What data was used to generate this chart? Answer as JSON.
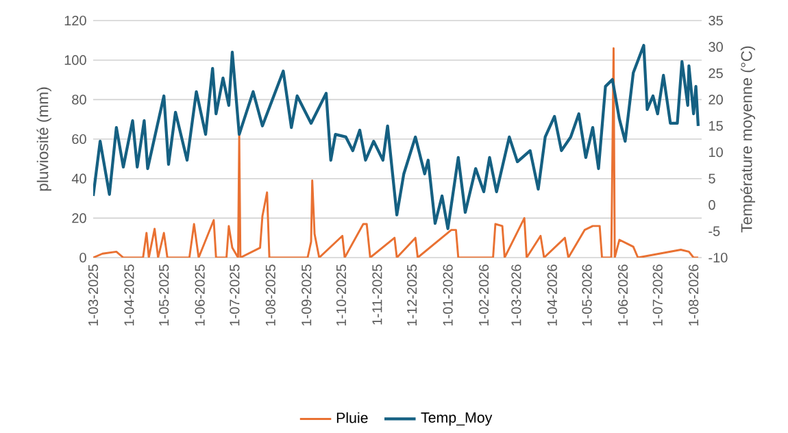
{
  "chart_data": {
    "type": "line",
    "xlabel": null,
    "ylabel": "pluviosité (mm)",
    "y2label": "Température moyenne (°C)",
    "xlim": [
      "2025-03-01",
      "2026-08-08"
    ],
    "xticks": [
      {
        "value": "2025-03-01",
        "label": "1-03-2025"
      },
      {
        "value": "2025-04-01",
        "label": "1-04-2025"
      },
      {
        "value": "2025-05-01",
        "label": "1-05-2025"
      },
      {
        "value": "2025-06-01",
        "label": "1-06-2025"
      },
      {
        "value": "2025-07-01",
        "label": "1-07-2025"
      },
      {
        "value": "2025-08-01",
        "label": "1-08-2025"
      },
      {
        "value": "2025-09-01",
        "label": "1-09-2025"
      },
      {
        "value": "2025-10-01",
        "label": "1-10-2025"
      },
      {
        "value": "2025-11-01",
        "label": "1-11-2025"
      },
      {
        "value": "2025-12-01",
        "label": "1-12-2025"
      },
      {
        "value": "2026-01-01",
        "label": "1-01-2026"
      },
      {
        "value": "2026-02-01",
        "label": "1-02-2026"
      },
      {
        "value": "2026-03-01",
        "label": "1-03-2026"
      },
      {
        "value": "2026-04-01",
        "label": "1-04-2026"
      },
      {
        "value": "2026-05-01",
        "label": "1-05-2026"
      },
      {
        "value": "2026-06-01",
        "label": "1-06-2026"
      },
      {
        "value": "2026-07-01",
        "label": "1-07-2026"
      },
      {
        "value": "2026-08-01",
        "label": "1-08-2026"
      }
    ],
    "ylim": [
      0,
      120
    ],
    "yticks": [
      0,
      20,
      40,
      60,
      80,
      100,
      120
    ],
    "y2lim": [
      -10,
      35
    ],
    "y2ticks": [
      -10,
      -5,
      0,
      5,
      10,
      15,
      20,
      25,
      30,
      35
    ],
    "grid": "y",
    "legend": "bottom",
    "marker": "none",
    "line_style": "solid",
    "series": [
      {
        "name": "Pluie",
        "color": "#e97132",
        "x": [
          "2025-03-01",
          "2025-03-09",
          "2025-03-21",
          "2025-03-27",
          "2025-04-13",
          "2025-04-16",
          "2025-04-18",
          "2025-04-23",
          "2025-04-26",
          "2025-05-01",
          "2025-05-04",
          "2025-05-23",
          "2025-05-27",
          "2025-05-31",
          "2025-06-13",
          "2025-06-15",
          "2025-06-24",
          "2025-06-26",
          "2025-06-29",
          "2025-07-04",
          "2025-07-05",
          "2025-07-06",
          "2025-07-23",
          "2025-07-25",
          "2025-07-29",
          "2025-07-31",
          "2025-09-02",
          "2025-09-05",
          "2025-09-06",
          "2025-09-08",
          "2025-09-12",
          "2025-10-02",
          "2025-10-04",
          "2025-10-20",
          "2025-10-23",
          "2025-10-26",
          "2025-11-16",
          "2025-11-18",
          "2025-12-04",
          "2025-12-06",
          "2026-01-04",
          "2026-01-08",
          "2026-01-10",
          "2026-02-09",
          "2026-02-11",
          "2026-02-17",
          "2026-02-19",
          "2026-03-08",
          "2026-03-10",
          "2026-03-22",
          "2026-03-25",
          "2026-04-12",
          "2026-04-15",
          "2026-04-29",
          "2026-05-06",
          "2026-05-12",
          "2026-05-14",
          "2026-05-22",
          "2026-05-24",
          "2026-05-25",
          "2026-05-29",
          "2026-06-05",
          "2026-06-10",
          "2026-06-14",
          "2026-07-21",
          "2026-07-28",
          "2026-08-01",
          "2026-08-05"
        ],
        "values": [
          0,
          2,
          3,
          0,
          0,
          12.5,
          0,
          14.6,
          0,
          12.5,
          0,
          0,
          17,
          0,
          19,
          0,
          0,
          16,
          5,
          0,
          62,
          0,
          5,
          21,
          33,
          0,
          0,
          8,
          39,
          12,
          0,
          11,
          0,
          17,
          17,
          0,
          10,
          0,
          10,
          0,
          14,
          14,
          0,
          0,
          17,
          16,
          0,
          20,
          0,
          11,
          0,
          10,
          0,
          14,
          16,
          16,
          0,
          0,
          106,
          0,
          9,
          7,
          5.5,
          0,
          4,
          3,
          0,
          0
        ]
      },
      {
        "name": "Temp_Moy",
        "color": "#156082",
        "axis": "y2",
        "x": [
          "2025-03-01",
          "2025-03-07",
          "2025-03-15",
          "2025-03-21",
          "2025-03-27",
          "2025-04-04",
          "2025-04-08",
          "2025-04-14",
          "2025-04-17",
          "2025-05-01",
          "2025-05-05",
          "2025-05-11",
          "2025-05-21",
          "2025-05-29",
          "2025-06-06",
          "2025-06-12",
          "2025-06-15",
          "2025-06-21",
          "2025-06-26",
          "2025-06-29",
          "2025-07-05",
          "2025-07-17",
          "2025-07-25",
          "2025-08-12",
          "2025-08-19",
          "2025-08-24",
          "2025-09-05",
          "2025-09-18",
          "2025-09-22",
          "2025-09-26",
          "2025-10-05",
          "2025-10-11",
          "2025-10-17",
          "2025-10-22",
          "2025-10-29",
          "2025-11-06",
          "2025-11-10",
          "2025-11-18",
          "2025-11-24",
          "2025-12-04",
          "2025-12-12",
          "2025-12-15",
          "2025-12-21",
          "2025-12-27",
          "2026-01-01",
          "2026-01-10",
          "2026-01-16",
          "2026-01-25",
          "2026-02-01",
          "2026-02-06",
          "2026-02-12",
          "2026-02-23",
          "2026-03-02",
          "2026-03-13",
          "2026-03-20",
          "2026-03-26",
          "2026-04-03",
          "2026-04-09",
          "2026-04-17",
          "2026-04-24",
          "2026-04-30",
          "2026-05-06",
          "2026-05-11",
          "2026-05-17",
          "2026-05-23",
          "2026-05-29",
          "2026-06-03",
          "2026-06-10",
          "2026-06-19",
          "2026-06-22",
          "2026-06-27",
          "2026-07-01",
          "2026-07-06",
          "2026-07-12",
          "2026-07-18",
          "2026-07-22",
          "2026-07-27",
          "2026-07-28",
          "2026-08-01",
          "2026-08-03",
          "2026-08-05"
        ],
        "values": [
          1.7,
          12.1,
          2.0,
          14.7,
          7.2,
          16.0,
          7.2,
          16.0,
          6.9,
          20.7,
          7.7,
          17.6,
          8.5,
          21.5,
          13.4,
          25.9,
          17.3,
          24.1,
          18.9,
          29.0,
          13.4,
          21.5,
          15.0,
          25.4,
          14.7,
          20.7,
          15.5,
          21.2,
          8.5,
          13.4,
          12.9,
          10.3,
          14.2,
          8.5,
          12.1,
          8.5,
          15.0,
          -1.9,
          5.9,
          12.9,
          5.9,
          8.5,
          -3.5,
          1.7,
          -4.5,
          9.0,
          -1.4,
          6.9,
          2.5,
          9.0,
          2.5,
          12.9,
          8.2,
          10.3,
          3.0,
          12.9,
          16.8,
          10.3,
          12.9,
          17.3,
          9.0,
          14.7,
          6.9,
          22.5,
          23.8,
          16.3,
          12.1,
          25.1,
          30.3,
          18.1,
          20.7,
          17.3,
          24.6,
          15.5,
          15.5,
          27.2,
          18.9,
          26.4,
          17.3,
          22.5,
          15.0
        ]
      }
    ]
  }
}
